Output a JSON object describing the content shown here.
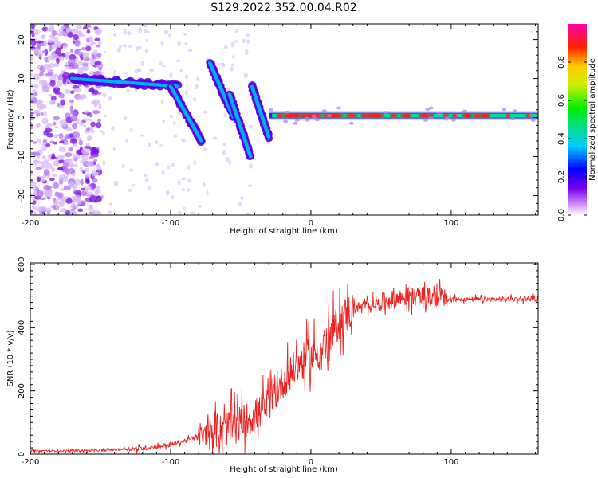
{
  "title": "S129.2022.352.00.04.R02",
  "chart_data": [
    {
      "type": "heatmap",
      "xlabel": "Height of straight line (km)",
      "ylabel": "Frequency (Hz)",
      "xlim": [
        -200,
        162
      ],
      "ylim": [
        -25,
        24
      ],
      "xticks": [
        -200,
        -100,
        0,
        100
      ],
      "yticks": [
        -20,
        -10,
        0,
        10,
        20
      ],
      "colorbar": {
        "label": "Normalized spectral amplitude",
        "range": [
          0,
          1
        ],
        "ticks": [
          0.0,
          0.2,
          0.4,
          0.6,
          0.8
        ]
      },
      "features": [
        {
          "kind": "scatter-noise",
          "x": [
            -200,
            -150
          ],
          "y": [
            -25,
            24
          ]
        },
        {
          "kind": "band",
          "x": [
            -170,
            -95
          ],
          "y": [
            10,
            8
          ]
        },
        {
          "kind": "streak",
          "x": [
            -100,
            -78
          ],
          "y": [
            8,
            -6
          ]
        },
        {
          "kind": "streak",
          "x": [
            -72,
            -55
          ],
          "y": [
            14,
            0
          ]
        },
        {
          "kind": "streak",
          "x": [
            -58,
            -43
          ],
          "y": [
            6,
            -10
          ]
        },
        {
          "kind": "streak",
          "x": [
            -42,
            -30
          ],
          "y": [
            8,
            -5
          ]
        },
        {
          "kind": "line",
          "x": [
            -30,
            162
          ],
          "y": [
            0,
            1
          ]
        }
      ]
    },
    {
      "type": "line",
      "xlabel": "Height of straight line (km)",
      "ylabel": "SNR (10 * v/v)",
      "xlim": [
        -200,
        162
      ],
      "ylim": [
        0,
        605
      ],
      "xticks": [
        -200,
        -100,
        0,
        100
      ],
      "yticks": [
        0,
        200,
        400,
        600
      ],
      "color": "#ee2222",
      "series": [
        {
          "baseline_x": [
            -200,
            -150,
            -120,
            -100,
            -80,
            -60,
            -40,
            -30,
            -20,
            -10,
            0,
            10,
            20,
            30,
            50,
            70,
            90,
            100,
            120,
            140,
            162
          ],
          "baseline_y": [
            10,
            12,
            18,
            30,
            55,
            80,
            120,
            160,
            230,
            280,
            310,
            340,
            420,
            460,
            480,
            500,
            495,
            490,
            490,
            490,
            495
          ]
        }
      ]
    }
  ]
}
